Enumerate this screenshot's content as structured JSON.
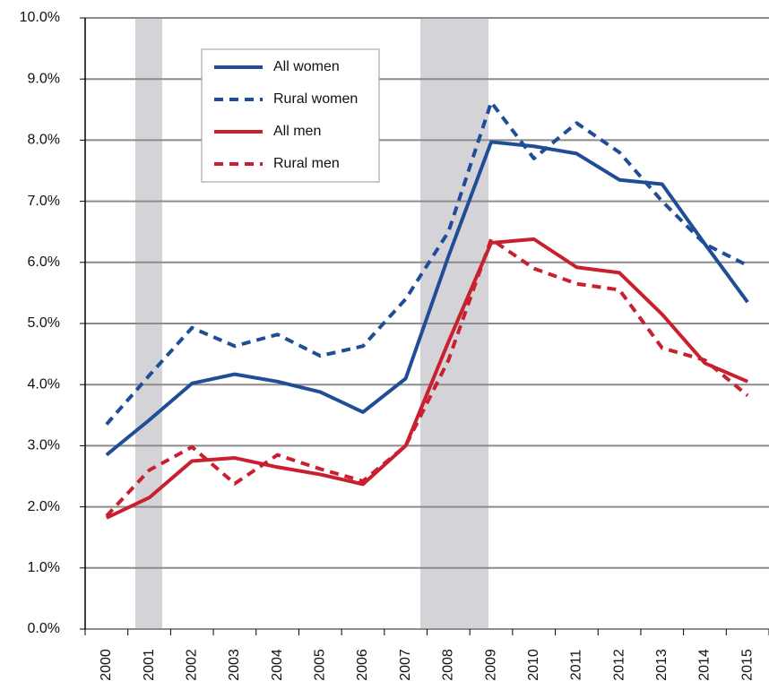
{
  "chart_data": {
    "type": "line",
    "categories": [
      "2000",
      "2001",
      "2002",
      "2003",
      "2004",
      "2005",
      "2006",
      "2007",
      "2008",
      "2009",
      "2010",
      "2011",
      "2012",
      "2013",
      "2014",
      "2015"
    ],
    "series": [
      {
        "name": "All women",
        "color": "#1f4e96",
        "style": "solid",
        "values": [
          2.85,
          3.42,
          4.02,
          4.17,
          4.05,
          3.88,
          3.55,
          4.1,
          6.1,
          7.97,
          7.9,
          7.78,
          7.35,
          7.28,
          6.3,
          5.35
        ]
      },
      {
        "name": "Rural women",
        "color": "#1f4e96",
        "style": "dashed",
        "values": [
          3.35,
          4.15,
          4.93,
          4.63,
          4.82,
          4.47,
          4.63,
          5.4,
          6.5,
          8.62,
          7.7,
          8.28,
          7.8,
          7.0,
          6.3,
          5.95
        ]
      },
      {
        "name": "All men",
        "color": "#c8202f",
        "style": "solid",
        "values": [
          1.82,
          2.15,
          2.75,
          2.8,
          2.65,
          2.53,
          2.37,
          3.0,
          4.7,
          6.32,
          6.38,
          5.92,
          5.83,
          5.15,
          4.35,
          4.05
        ]
      },
      {
        "name": "Rural men",
        "color": "#c8202f",
        "style": "dashed",
        "values": [
          1.85,
          2.6,
          2.98,
          2.38,
          2.85,
          2.62,
          2.42,
          3.0,
          4.4,
          6.38,
          5.9,
          5.65,
          5.55,
          4.6,
          4.4,
          3.82
        ]
      }
    ],
    "ylim": [
      0,
      10
    ],
    "yticks": [
      {
        "value": 0,
        "label": "0.0%"
      },
      {
        "value": 1,
        "label": "1.0%"
      },
      {
        "value": 2,
        "label": "2.0%"
      },
      {
        "value": 3,
        "label": "3.0%"
      },
      {
        "value": 4,
        "label": "4.0%"
      },
      {
        "value": 5,
        "label": "5.0%"
      },
      {
        "value": 6,
        "label": "6.0%"
      },
      {
        "value": 7,
        "label": "7.0%"
      },
      {
        "value": 8,
        "label": "8.0%"
      },
      {
        "value": 9,
        "label": "9.0%"
      },
      {
        "value": 10,
        "label": "10.0%"
      }
    ],
    "grid": true,
    "legend": "upper-left"
  }
}
